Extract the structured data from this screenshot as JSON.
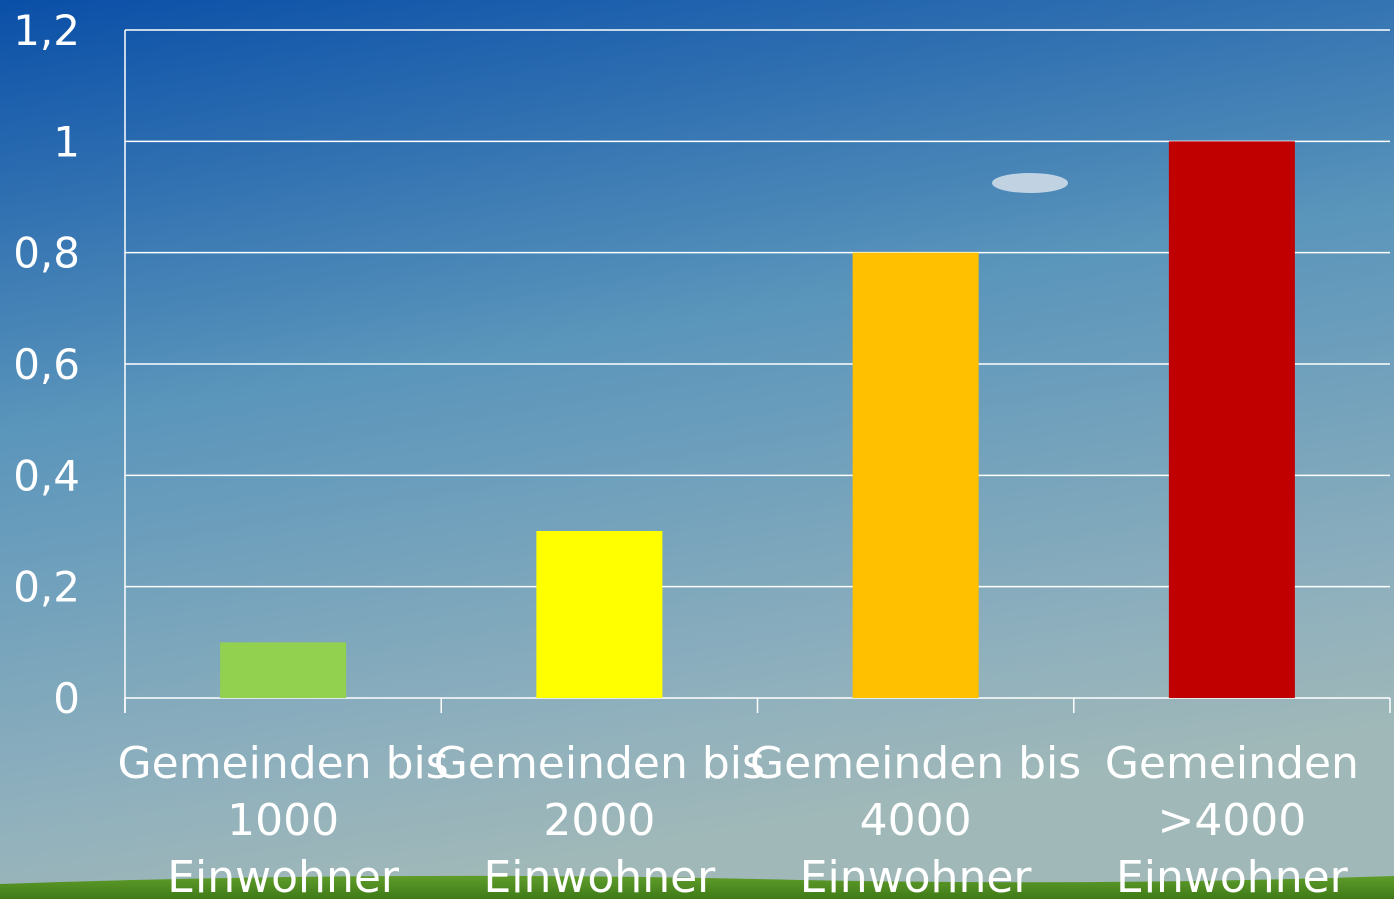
{
  "chart_data": {
    "type": "bar",
    "categories": [
      "Gemeinden bis\n1000\nEinwohner",
      "Gemeinden bis\n2000\nEinwohner",
      "Gemeinden bis\n4000\nEinwohner",
      "Gemeinden\n>4000\nEinwohner"
    ],
    "values": [
      0.1,
      0.3,
      0.8,
      1.0
    ],
    "colors": [
      "#92d050",
      "#ffff00",
      "#ffc000",
      "#c00000"
    ],
    "ylim": [
      0,
      1.2
    ],
    "yticks": [
      0,
      {
        "value": 0.2,
        "label": "0,2"
      },
      {
        "value": 0.4,
        "label": "0,4"
      },
      {
        "value": 0.6,
        "label": "0,6"
      },
      {
        "value": 0.8,
        "label": "0,8"
      },
      1,
      {
        "value": 1.2,
        "label": "1,2"
      }
    ],
    "grid": true
  }
}
